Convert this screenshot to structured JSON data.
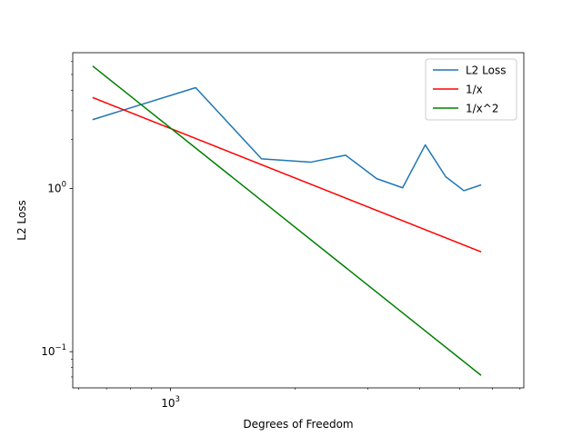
{
  "chart_data": {
    "type": "line",
    "title": "",
    "xlabel": "Degrees of Freedom",
    "ylabel": "L2 Loss",
    "xscale": "log",
    "yscale": "log",
    "xlim": [
      580,
      7150
    ],
    "ylim": [
      0.06,
      6.8
    ],
    "x_major_ticks": [
      {
        "value": 1000,
        "base": "10",
        "exp": "3"
      }
    ],
    "x_minor_ticks": [
      600,
      700,
      800,
      900,
      2000,
      3000,
      4000,
      5000,
      6000,
      7000
    ],
    "y_major_ticks": [
      {
        "value": 0.1,
        "base": "10",
        "exp": "−1"
      },
      {
        "value": 1,
        "base": "10",
        "exp": "0"
      }
    ],
    "y_minor_ticks": [
      0.07,
      0.08,
      0.09,
      2,
      3,
      4,
      5,
      6
    ],
    "grid": false,
    "legend_position": "top-right",
    "series": [
      {
        "name": "L2 Loss",
        "color": "#1f77b4",
        "x": [
          650,
          1150,
          1660,
          2180,
          2650,
          3150,
          3640,
          4130,
          4630,
          5120,
          5620
        ],
        "y": [
          2.65,
          4.15,
          1.52,
          1.45,
          1.6,
          1.15,
          1.01,
          1.85,
          1.18,
          0.97,
          1.05
        ]
      },
      {
        "name": "1/x",
        "color": "#ff0000",
        "x": [
          650,
          5620
        ],
        "y": [
          3.6,
          0.41
        ]
      },
      {
        "name": "1/x^2",
        "color": "#008000",
        "x": [
          650,
          5620
        ],
        "y": [
          5.6,
          0.072
        ]
      }
    ]
  }
}
